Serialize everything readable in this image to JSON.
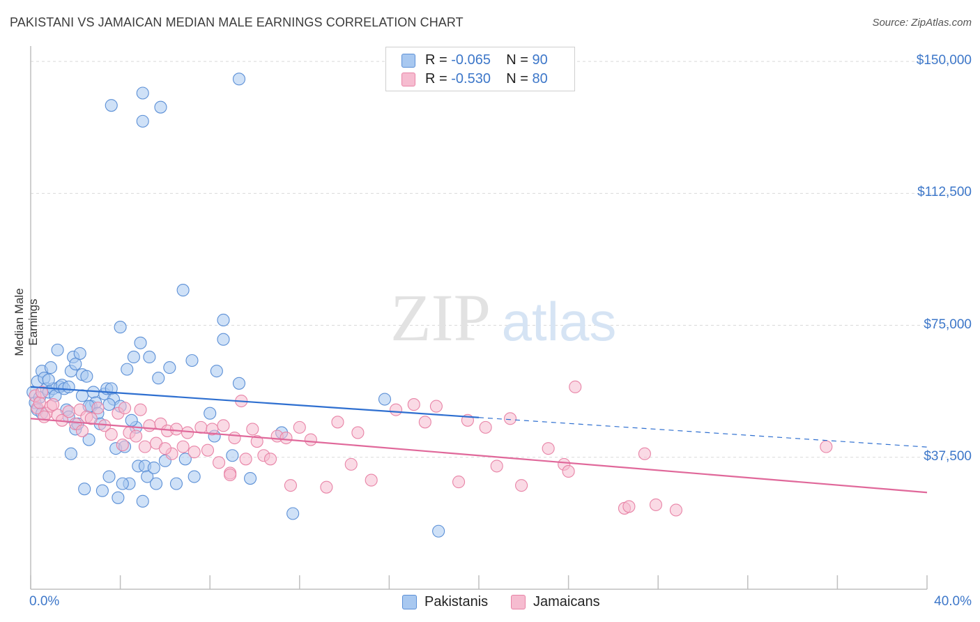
{
  "title": "PAKISTANI VS JAMAICAN MEDIAN MALE EARNINGS CORRELATION CHART",
  "source": "Source: ZipAtlas.com",
  "watermark": {
    "zip": "ZIP",
    "atlas": "atlas"
  },
  "colors": {
    "pakistanis_fill": "#a8c8f0",
    "pakistanis_stroke": "#5b8fd6",
    "pakistanis_line": "#2e6fd0",
    "jamaicans_fill": "#f6bcd0",
    "jamaicans_stroke": "#e883a6",
    "jamaicans_line": "#e0689a",
    "tick_label": "#3d77c9",
    "grid": "#d9d9d9"
  },
  "legend_top": [
    {
      "r_label": "R =",
      "r_value": "-0.065",
      "n_label": "N =",
      "n_value": "90"
    },
    {
      "r_label": "R =",
      "r_value": "-0.530",
      "n_label": "N =",
      "n_value": "80"
    }
  ],
  "legend_bottom": [
    "Pakistanis",
    "Jamaicans"
  ],
  "chart_data": {
    "type": "scatter",
    "title": "PAKISTANI VS JAMAICAN MEDIAN MALE EARNINGS CORRELATION CHART",
    "xlabel": "",
    "ylabel": "Median Male Earnings",
    "xlim": [
      0,
      40
    ],
    "ylim": [
      0,
      152000
    ],
    "x_tick_labels": [
      "0.0%",
      "40.0%"
    ],
    "y_ticks": [
      37500,
      75000,
      112500,
      150000
    ],
    "y_tick_labels": [
      "$37,500",
      "$75,000",
      "$112,500",
      "$150,000"
    ],
    "grid": "horizontal dashed",
    "legend_position": "top-center",
    "series": [
      {
        "name": "Pakistanis",
        "r": -0.065,
        "n": 90,
        "trend": {
          "x": [
            0,
            20
          ],
          "y": [
            57500,
            48800
          ],
          "dashed_to": [
            40,
            40400
          ]
        },
        "points": [
          [
            0.1,
            56000
          ],
          [
            0.2,
            53000
          ],
          [
            0.3,
            51000
          ],
          [
            0.3,
            59000
          ],
          [
            0.4,
            54500
          ],
          [
            0.5,
            62000
          ],
          [
            0.6,
            60000
          ],
          [
            0.7,
            57000
          ],
          [
            0.8,
            56000
          ],
          [
            0.9,
            63000
          ],
          [
            1.0,
            57000
          ],
          [
            1.1,
            55000
          ],
          [
            1.2,
            68000
          ],
          [
            1.3,
            57500
          ],
          [
            1.4,
            58000
          ],
          [
            1.5,
            57000
          ],
          [
            1.6,
            51000
          ],
          [
            1.7,
            49000
          ],
          [
            1.8,
            62000
          ],
          [
            1.8,
            38500
          ],
          [
            1.9,
            66000
          ],
          [
            2.0,
            45500
          ],
          [
            2.0,
            64000
          ],
          [
            2.1,
            47000
          ],
          [
            2.2,
            67000
          ],
          [
            2.3,
            55000
          ],
          [
            2.3,
            61000
          ],
          [
            2.4,
            28500
          ],
          [
            2.5,
            60500
          ],
          [
            2.6,
            42500
          ],
          [
            2.7,
            52000
          ],
          [
            2.8,
            56000
          ],
          [
            2.9,
            53000
          ],
          [
            3.0,
            50000
          ],
          [
            3.1,
            47000
          ],
          [
            3.3,
            55500
          ],
          [
            3.4,
            57000
          ],
          [
            3.5,
            32000
          ],
          [
            3.6,
            57000
          ],
          [
            3.7,
            54000
          ],
          [
            3.8,
            40000
          ],
          [
            3.9,
            26000
          ],
          [
            4.0,
            52000
          ],
          [
            4.2,
            40500
          ],
          [
            4.3,
            62500
          ],
          [
            4.4,
            30000
          ],
          [
            4.6,
            66000
          ],
          [
            4.7,
            46000
          ],
          [
            4.8,
            35000
          ],
          [
            4.9,
            70000
          ],
          [
            5.0,
            25000
          ],
          [
            5.1,
            35000
          ],
          [
            5.2,
            32000
          ],
          [
            5.3,
            66000
          ],
          [
            5.5,
            34500
          ],
          [
            5.6,
            30000
          ],
          [
            5.7,
            60000
          ],
          [
            5.8,
            137000
          ],
          [
            6.0,
            36500
          ],
          [
            6.2,
            63000
          ],
          [
            6.5,
            30000
          ],
          [
            6.8,
            85000
          ],
          [
            6.9,
            37000
          ],
          [
            7.2,
            65000
          ],
          [
            7.3,
            32000
          ],
          [
            8.0,
            50000
          ],
          [
            8.2,
            43500
          ],
          [
            8.3,
            62000
          ],
          [
            8.6,
            76500
          ],
          [
            8.6,
            71000
          ],
          [
            9.0,
            38000
          ],
          [
            9.3,
            58500
          ],
          [
            9.8,
            31500
          ],
          [
            11.2,
            44500
          ],
          [
            11.7,
            21500
          ],
          [
            15.8,
            54000
          ],
          [
            18.2,
            16500
          ],
          [
            4.1,
            30000
          ],
          [
            3.2,
            28000
          ],
          [
            0.8,
            59500
          ],
          [
            1.7,
            57500
          ],
          [
            2.6,
            52000
          ],
          [
            3.5,
            52500
          ],
          [
            4.5,
            48000
          ],
          [
            5.0,
            141000
          ],
          [
            5.0,
            133000
          ],
          [
            9.3,
            145000
          ],
          [
            3.6,
            137500
          ],
          [
            4.0,
            74500
          ],
          [
            0.5,
            50000
          ]
        ]
      },
      {
        "name": "Jamaicans",
        "r": -0.53,
        "n": 80,
        "trend": {
          "x": [
            0,
            40
          ],
          "y": [
            48500,
            27500
          ]
        },
        "points": [
          [
            0.2,
            55000
          ],
          [
            0.3,
            51500
          ],
          [
            0.4,
            53000
          ],
          [
            0.5,
            56000
          ],
          [
            0.7,
            50000
          ],
          [
            0.9,
            52000
          ],
          [
            1.2,
            49500
          ],
          [
            1.4,
            48000
          ],
          [
            1.7,
            50500
          ],
          [
            2.0,
            47000
          ],
          [
            2.2,
            51000
          ],
          [
            2.5,
            49000
          ],
          [
            2.7,
            48500
          ],
          [
            3.0,
            51500
          ],
          [
            3.3,
            46500
          ],
          [
            3.6,
            44000
          ],
          [
            3.9,
            50000
          ],
          [
            4.1,
            41000
          ],
          [
            4.4,
            44500
          ],
          [
            4.7,
            43500
          ],
          [
            4.9,
            51000
          ],
          [
            5.1,
            40500
          ],
          [
            5.3,
            46500
          ],
          [
            5.6,
            41500
          ],
          [
            5.8,
            47000
          ],
          [
            6.1,
            45000
          ],
          [
            6.3,
            38500
          ],
          [
            6.5,
            45500
          ],
          [
            6.8,
            40500
          ],
          [
            7.0,
            44500
          ],
          [
            7.3,
            39000
          ],
          [
            7.6,
            46000
          ],
          [
            7.9,
            39500
          ],
          [
            8.1,
            45500
          ],
          [
            8.4,
            36000
          ],
          [
            8.6,
            46500
          ],
          [
            8.9,
            33000
          ],
          [
            9.1,
            43000
          ],
          [
            9.4,
            53500
          ],
          [
            9.6,
            37000
          ],
          [
            9.9,
            45500
          ],
          [
            10.1,
            42000
          ],
          [
            10.4,
            38000
          ],
          [
            10.7,
            37000
          ],
          [
            11.0,
            43500
          ],
          [
            11.4,
            43000
          ],
          [
            11.6,
            29500
          ],
          [
            12.0,
            46000
          ],
          [
            12.5,
            42500
          ],
          [
            13.2,
            29000
          ],
          [
            13.7,
            47500
          ],
          [
            14.3,
            35500
          ],
          [
            14.6,
            44500
          ],
          [
            15.2,
            31000
          ],
          [
            16.3,
            51000
          ],
          [
            17.1,
            52500
          ],
          [
            17.6,
            47500
          ],
          [
            18.1,
            52000
          ],
          [
            19.1,
            30500
          ],
          [
            19.5,
            48000
          ],
          [
            20.3,
            46000
          ],
          [
            20.8,
            35000
          ],
          [
            21.4,
            48500
          ],
          [
            21.9,
            29500
          ],
          [
            23.1,
            40000
          ],
          [
            23.8,
            35500
          ],
          [
            24.0,
            33500
          ],
          [
            24.3,
            57500
          ],
          [
            26.5,
            23000
          ],
          [
            26.7,
            23500
          ],
          [
            27.4,
            38500
          ],
          [
            27.9,
            24000
          ],
          [
            28.8,
            22500
          ],
          [
            35.5,
            40500
          ],
          [
            0.6,
            49000
          ],
          [
            1.0,
            52500
          ],
          [
            2.3,
            45000
          ],
          [
            4.2,
            51500
          ],
          [
            6.0,
            40000
          ],
          [
            8.9,
            32500
          ]
        ]
      }
    ]
  }
}
